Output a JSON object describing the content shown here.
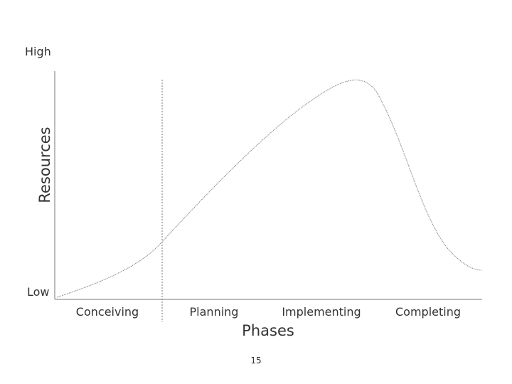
{
  "axes": {
    "y_top": "High",
    "y_title": "Resources",
    "y_bottom": "Low",
    "x_title": "Phases"
  },
  "phases": [
    "Conceiving",
    "Planning",
    "Implementing",
    "Completing"
  ],
  "page_number": "15"
}
